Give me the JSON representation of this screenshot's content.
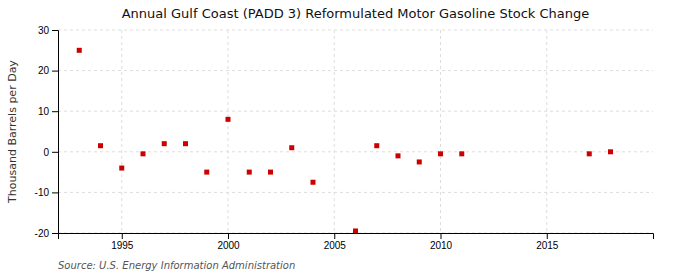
{
  "chart_data": {
    "type": "scatter",
    "title": "Annual Gulf Coast (PADD 3) Reformulated Motor Gasoline Stock Change",
    "ylabel": "Thousand Barrels per Day",
    "source": "Source: U.S. Energy Information Administration",
    "x": [
      1993,
      1994,
      1995,
      1996,
      1997,
      1998,
      1999,
      2000,
      2001,
      2002,
      2003,
      2004,
      2006,
      2007,
      2008,
      2009,
      2010,
      2011,
      2017,
      2018
    ],
    "values": [
      25.0,
      1.5,
      -4.0,
      -0.5,
      2.0,
      2.0,
      -5.0,
      8.0,
      -5.0,
      -5.0,
      1.0,
      -7.5,
      -19.5,
      1.5,
      -1.0,
      -2.5,
      -0.5,
      -0.5,
      -0.5,
      0.0
    ],
    "color": "#cc0000",
    "marker": "square",
    "xlim": [
      1992,
      2020
    ],
    "ylim": [
      -20,
      30
    ],
    "xticks": [
      1995,
      2000,
      2005,
      2010,
      2015
    ],
    "yticks": [
      -20,
      -10,
      0,
      10,
      20,
      30
    ],
    "grid": true
  }
}
